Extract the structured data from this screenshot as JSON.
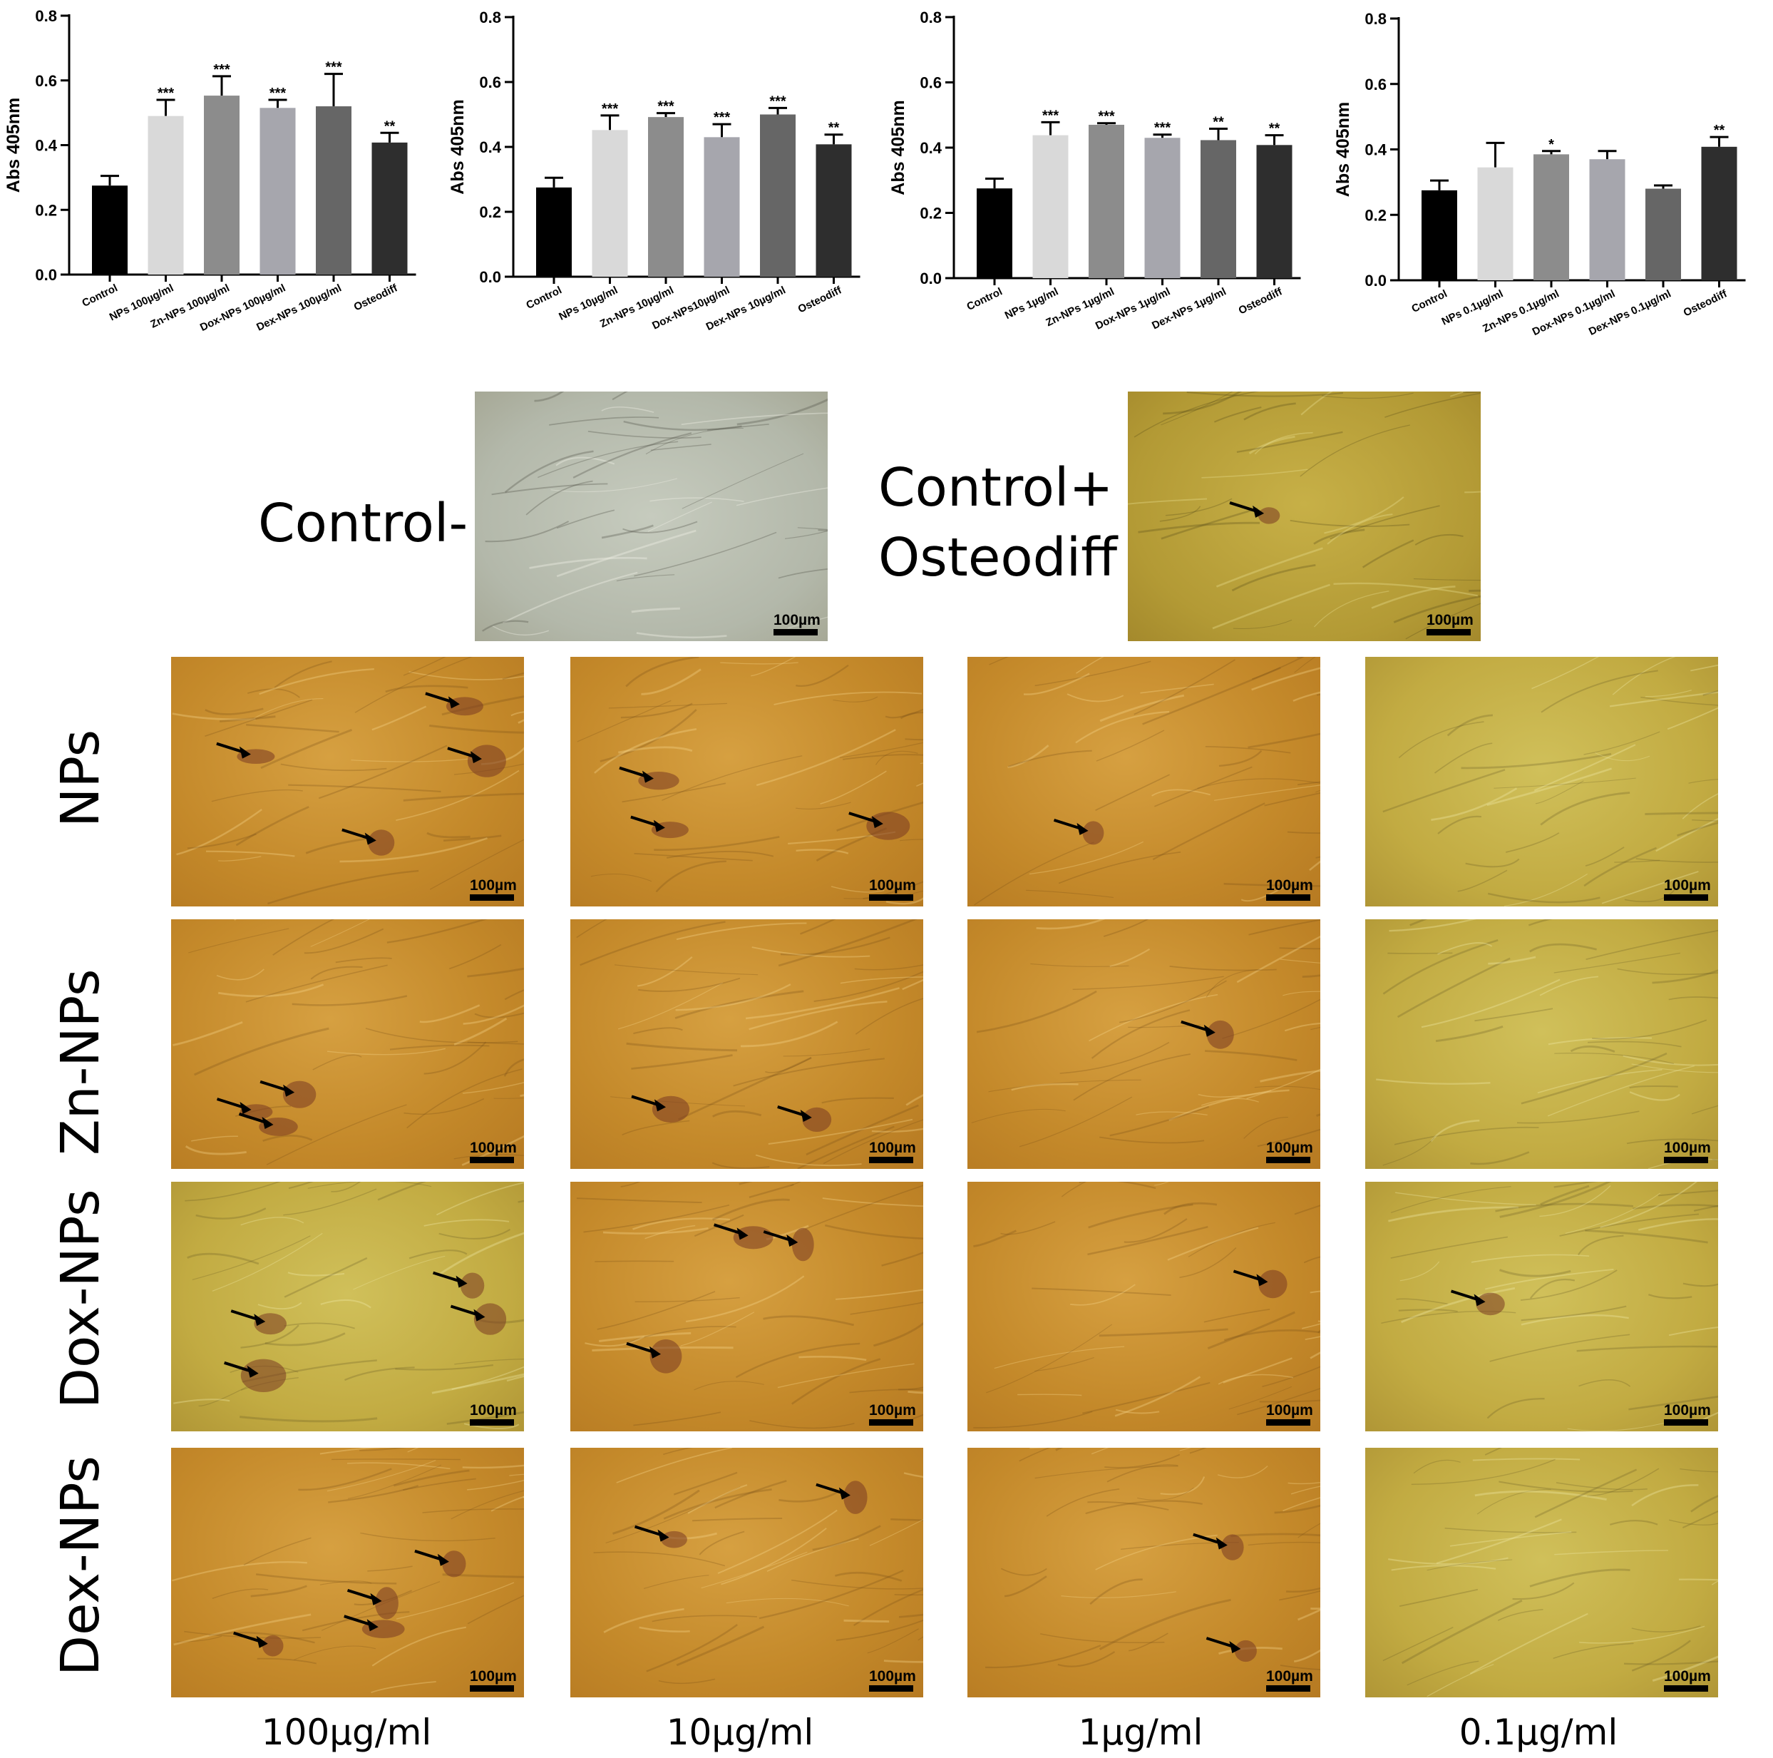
{
  "colors": {
    "bars": [
      "#000000",
      "#d9d9d9",
      "#8c8c8c",
      "#a6a6ad",
      "#666666",
      "#2e2e2e"
    ],
    "photo_orange": "#c9922f",
    "photo_yellow": "#c7b44a",
    "photo_gray": "#b9c0b3",
    "mineral": "#7a3a22"
  },
  "chart_data": [
    {
      "type": "bar",
      "ylabel": "Abs 405nm",
      "ylim": [
        0,
        0.8
      ],
      "yticks": [
        "0.0",
        "0.2",
        "0.4",
        "0.6",
        "0.8"
      ],
      "categories": [
        "Control",
        "NPs 100µg/ml",
        "Zn-NPs 100µg/ml",
        "Dox-NPs 100µg/ml",
        "Dex-NPs 100µg/ml",
        "Osteodiff"
      ],
      "values": [
        0.275,
        0.49,
        0.553,
        0.515,
        0.52,
        0.408
      ],
      "errors": [
        0.03,
        0.05,
        0.06,
        0.025,
        0.1,
        0.03
      ],
      "significance": [
        "",
        "***",
        "***",
        "***",
        "***",
        "**"
      ]
    },
    {
      "type": "bar",
      "ylabel": "Abs 405nm",
      "ylim": [
        0,
        0.8
      ],
      "yticks": [
        "0.0",
        "0.2",
        "0.4",
        "0.6",
        "0.8"
      ],
      "categories": [
        "Control",
        "NPs 10µg/ml",
        "Zn-NPs 10µg/ml",
        "Dox-NPs10µg/ml",
        "Dex-NPs 10µg/ml",
        "Osteodiff"
      ],
      "values": [
        0.275,
        0.452,
        0.492,
        0.43,
        0.5,
        0.408
      ],
      "errors": [
        0.03,
        0.045,
        0.012,
        0.04,
        0.02,
        0.03
      ],
      "significance": [
        "",
        "***",
        "***",
        "***",
        "***",
        "**"
      ]
    },
    {
      "type": "bar",
      "ylabel": "Abs 405nm",
      "ylim": [
        0,
        0.8
      ],
      "yticks": [
        "0.0",
        "0.2",
        "0.4",
        "0.6",
        "0.8"
      ],
      "categories": [
        "Control",
        "NPs 1µg/ml",
        "Zn-NPs 1µg/ml",
        "Dox-NPs 1µg/ml",
        "Dex-NPs 1µg/ml",
        "Osteodiff"
      ],
      "values": [
        0.275,
        0.438,
        0.47,
        0.43,
        0.423,
        0.408
      ],
      "errors": [
        0.03,
        0.04,
        0.005,
        0.01,
        0.035,
        0.03
      ],
      "significance": [
        "",
        "***",
        "***",
        "***",
        "**",
        "**"
      ]
    },
    {
      "type": "bar",
      "ylabel": "Abs 405nm",
      "ylim": [
        0,
        0.8
      ],
      "yticks": [
        "0.0",
        "0.2",
        "0.4",
        "0.6",
        "0.8"
      ],
      "categories": [
        "Control",
        "NPs 0.1µg/ml",
        "Zn-NPs 0.1µg/ml",
        "Dox-NPs 0.1µg/ml",
        "Dex-NPs 0.1µg/ml",
        "Osteodiff"
      ],
      "values": [
        0.275,
        0.345,
        0.385,
        0.37,
        0.28,
        0.408
      ],
      "errors": [
        0.03,
        0.075,
        0.01,
        0.025,
        0.01,
        0.03
      ],
      "significance": [
        "",
        "",
        "*",
        "",
        "",
        "**"
      ]
    }
  ],
  "figure": {
    "control_neg_label": "Control-",
    "control_pos_label_line1": "Control+",
    "control_pos_label_line2": "Osteodiff",
    "scale_bar_label": "100µm",
    "row_labels": [
      "NPs",
      "Zn-NPs",
      "Dox-NPs",
      "Dex-NPs"
    ],
    "column_labels": [
      "100µg/ml",
      "10µg/ml",
      "1µg/ml",
      "0.1µg/ml"
    ],
    "control_neg_arrows": 0,
    "control_pos_arrows": 1,
    "panels": [
      {
        "row": "NPs",
        "concentration": "100µg/ml",
        "tone": "orange",
        "arrows": 4
      },
      {
        "row": "NPs",
        "concentration": "10µg/ml",
        "tone": "orange",
        "arrows": 3
      },
      {
        "row": "NPs",
        "concentration": "1µg/ml",
        "tone": "orange",
        "arrows": 1
      },
      {
        "row": "NPs",
        "concentration": "0.1µg/ml",
        "tone": "yellow",
        "arrows": 0
      },
      {
        "row": "Zn-NPs",
        "concentration": "100µg/ml",
        "tone": "orange",
        "arrows": 3
      },
      {
        "row": "Zn-NPs",
        "concentration": "10µg/ml",
        "tone": "orange",
        "arrows": 2
      },
      {
        "row": "Zn-NPs",
        "concentration": "1µg/ml",
        "tone": "orange",
        "arrows": 1
      },
      {
        "row": "Zn-NPs",
        "concentration": "0.1µg/ml",
        "tone": "yellow",
        "arrows": 0
      },
      {
        "row": "Dox-NPs",
        "concentration": "100µg/ml",
        "tone": "yellow",
        "arrows": 4
      },
      {
        "row": "Dox-NPs",
        "concentration": "10µg/ml",
        "tone": "orange",
        "arrows": 3
      },
      {
        "row": "Dox-NPs",
        "concentration": "1µg/ml",
        "tone": "orange",
        "arrows": 1
      },
      {
        "row": "Dox-NPs",
        "concentration": "0.1µg/ml",
        "tone": "yellow",
        "arrows": 1
      },
      {
        "row": "Dex-NPs",
        "concentration": "100µg/ml",
        "tone": "orange",
        "arrows": 4
      },
      {
        "row": "Dex-NPs",
        "concentration": "10µg/ml",
        "tone": "orange",
        "arrows": 2
      },
      {
        "row": "Dex-NPs",
        "concentration": "1µg/ml",
        "tone": "orange",
        "arrows": 2
      },
      {
        "row": "Dex-NPs",
        "concentration": "0.1µg/ml",
        "tone": "yellow",
        "arrows": 0
      }
    ]
  }
}
